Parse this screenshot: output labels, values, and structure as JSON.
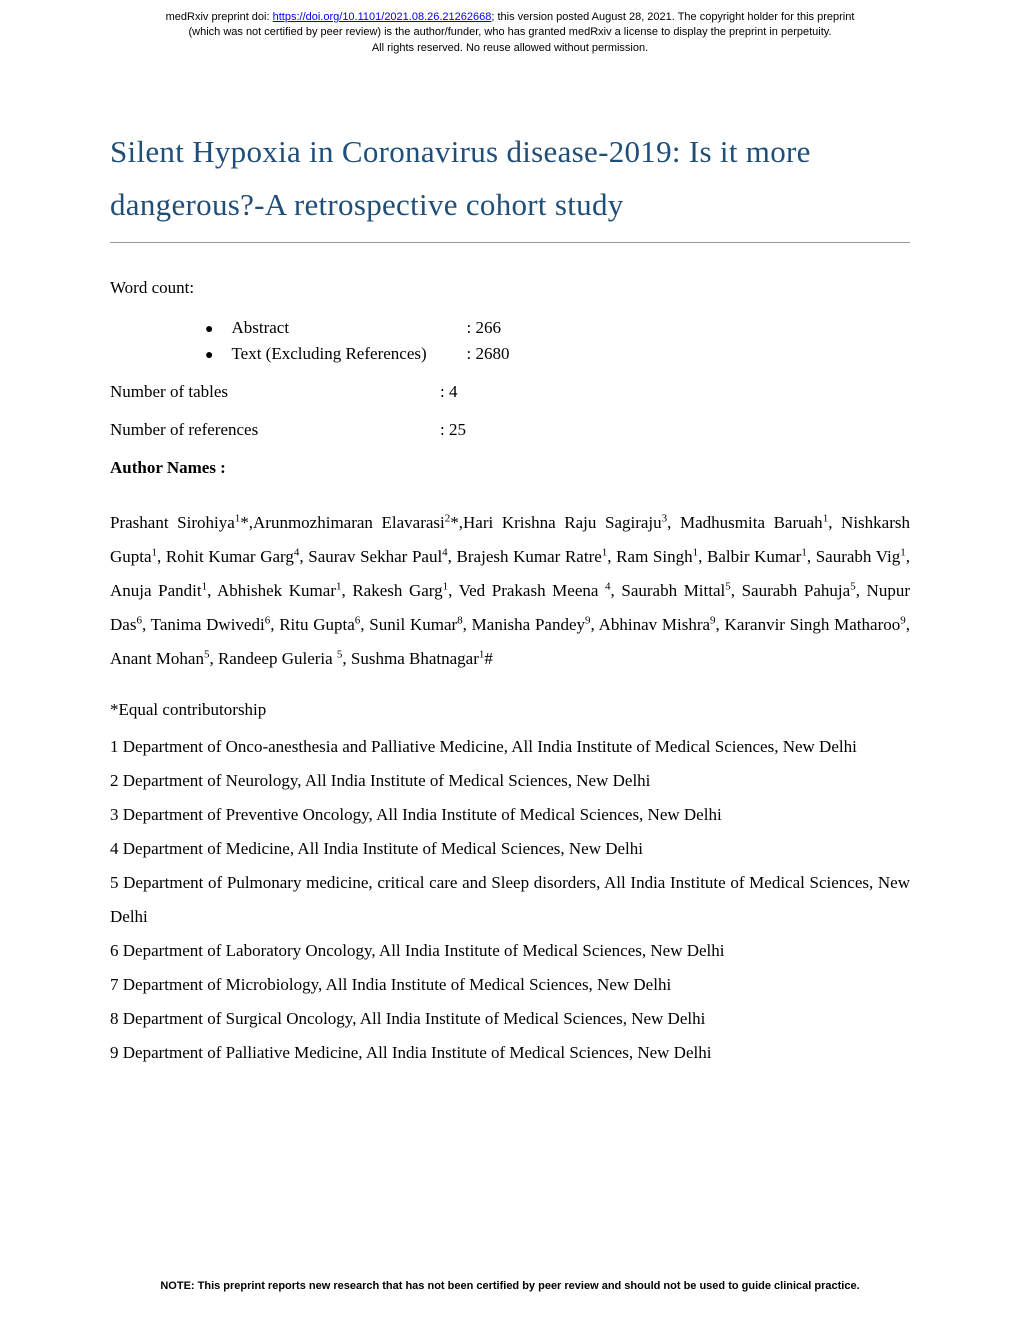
{
  "header": {
    "line1_prefix": "medRxiv preprint doi: ",
    "doi_url": "https://doi.org/10.1101/2021.08.26.21262668",
    "line1_suffix": "; this version posted August 28, 2021. The copyright holder for this preprint",
    "line2": "(which was not certified by peer review) is the author/funder, who has granted medRxiv a license to display the preprint in perpetuity.",
    "line3": "All rights reserved. No reuse allowed without permission."
  },
  "title": "Silent Hypoxia in Coronavirus disease-2019: Is it more dangerous?-A retrospective cohort study",
  "word_count_label": "Word count:",
  "bullets": [
    {
      "label": "Abstract",
      "value": ": 266"
    },
    {
      "label": "Text (Excluding References)",
      "value": ": 2680"
    }
  ],
  "meta": [
    {
      "label": "Number of tables",
      "value": ": 4"
    },
    {
      "label": "Number of references",
      "value": ": 25"
    }
  ],
  "author_heading": "Author Names :",
  "authors_html": "Prashant Sirohiya<sup>1</sup>*,Arunmozhimaran Elavarasi<sup>2</sup>*,Hari Krishna Raju Sagiraju<sup>3</sup>, Madhusmita Baruah<sup>1</sup>, Nishkarsh Gupta<sup>1</sup>, Rohit Kumar Garg<sup>4</sup>, Saurav Sekhar Paul<sup>4</sup>, Brajesh Kumar Ratre<sup>1</sup>, Ram Singh<sup>1</sup>, Balbir Kumar<sup>1</sup>, Saurabh Vig<sup>1</sup>, Anuja Pandit<sup>1</sup>, Abhishek Kumar<sup>1</sup>, Rakesh Garg<sup>1</sup>, Ved Prakash Meena <sup>4</sup>, Saurabh Mittal<sup>5</sup>, Saurabh Pahuja<sup>5</sup>, Nupur Das<sup>6</sup>, Tanima Dwivedi<sup>6</sup>, Ritu Gupta<sup>6</sup>, Sunil Kumar<sup>8</sup>, Manisha Pandey<sup>9</sup>, Abhinav Mishra<sup>9</sup>, Karanvir Singh Matharoo<sup>9</sup>, Anant Mohan<sup>5</sup>, Randeep Guleria <sup>5</sup>, Sushma Bhatnagar<sup>1</sup>#",
  "contributorship": "*Equal contributorship",
  "affiliations": [
    "1 Department of Onco-anesthesia and Palliative Medicine, All India Institute of Medical Sciences, New Delhi",
    "2 Department of Neurology, All India Institute of Medical Sciences, New Delhi",
    "3 Department of Preventive Oncology, All India Institute of Medical Sciences, New Delhi",
    "4 Department of Medicine, All India Institute of Medical Sciences, New Delhi",
    "5 Department of Pulmonary medicine, critical care and Sleep disorders, All India Institute of Medical Sciences, New Delhi",
    "6 Department of Laboratory Oncology, All India Institute of Medical Sciences, New Delhi",
    "7 Department of Microbiology, All India Institute of Medical Sciences, New Delhi",
    "8 Department of Surgical Oncology, All India Institute of Medical Sciences, New Delhi",
    "9 Department of Palliative Medicine, All India Institute of Medical Sciences, New Delhi"
  ],
  "footer_note": "NOTE: This preprint reports new research that has not been certified by peer review and should not be used to guide clinical practice."
}
